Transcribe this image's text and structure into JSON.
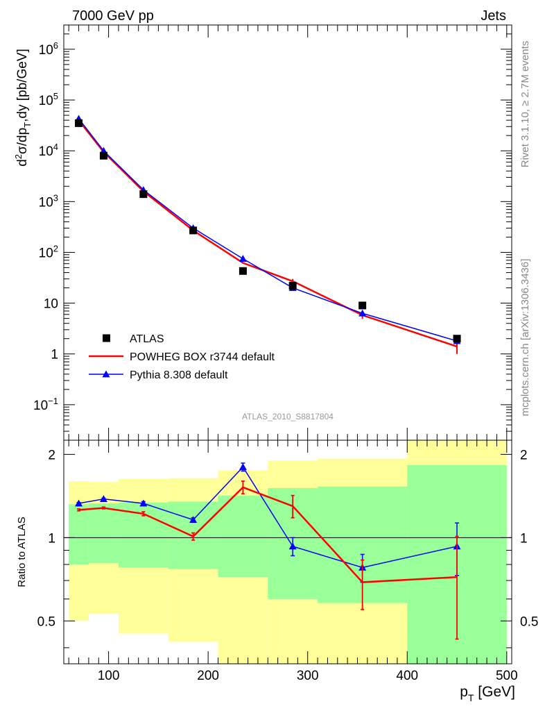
{
  "header": {
    "left": "7000 GeV pp",
    "right": "Jets"
  },
  "side_labels": {
    "rivet": "Rivet 3.1.10, ≥ 2.7M events",
    "mcplots": "mcplots.cern.ch [arXiv:1306.3436]"
  },
  "analysis_id": "ATLAS_2010_S8817804",
  "colors": {
    "data": "#000000",
    "powheg": "#ff0000",
    "pythia": "#0000ff",
    "band_outer": "#ffff99",
    "band_inner": "#99ff99"
  },
  "chart_data": [
    {
      "type": "scatter",
      "panel": "main",
      "ylabel": "d²σ/dp_T,dy [pb/GeV]",
      "yscale": "log",
      "ylim": [
        0.02,
        3000000
      ],
      "xlim": [
        55,
        505
      ],
      "yticks": [
        {
          "value": 0.1,
          "base": "10",
          "exp": "−1"
        },
        {
          "value": 1,
          "base": "1",
          "exp": ""
        },
        {
          "value": 10,
          "base": "10",
          "exp": ""
        },
        {
          "value": 100,
          "base": "10",
          "exp": "2"
        },
        {
          "value": 1000,
          "base": "10",
          "exp": "3"
        },
        {
          "value": 10000,
          "base": "10",
          "exp": "4"
        },
        {
          "value": 100000,
          "base": "10",
          "exp": "5"
        },
        {
          "value": 1000000,
          "base": "10",
          "exp": "6"
        }
      ],
      "legend_position": "bottom-left",
      "series": [
        {
          "name": "ATLAS",
          "marker": "square",
          "x": [
            70,
            95,
            135,
            185,
            235,
            285,
            355,
            450
          ],
          "y": [
            35000,
            8000,
            1400,
            270,
            43,
            22,
            9,
            2.0
          ]
        },
        {
          "name": "POWHEG BOX r3744 default",
          "marker": "line",
          "x": [
            70,
            95,
            135,
            185,
            235,
            285,
            355,
            450
          ],
          "y": [
            40000,
            9500,
            1600,
            270,
            62,
            27,
            5.8,
            1.4
          ],
          "err": [
            0,
            0,
            0,
            0,
            0,
            3,
            0.9,
            0.4
          ]
        },
        {
          "name": "Pythia 8.308 default",
          "marker": "triangle",
          "x": [
            70,
            95,
            135,
            185,
            235,
            285,
            355,
            450
          ],
          "y": [
            43000,
            10000,
            1700,
            300,
            75,
            20,
            6.3,
            1.8
          ]
        }
      ]
    },
    {
      "type": "line",
      "panel": "ratio",
      "xlabel": "p_T [GeV]",
      "ylabel": "Ratio to ATLAS",
      "xlim": [
        55,
        505
      ],
      "ylim": [
        0.35,
        2.25
      ],
      "xticks": [
        100,
        200,
        300,
        400,
        500
      ],
      "yticks": [
        0.5,
        1,
        2
      ],
      "bins": [
        [
          60,
          80
        ],
        [
          80,
          110
        ],
        [
          110,
          160
        ],
        [
          160,
          210
        ],
        [
          210,
          260
        ],
        [
          260,
          310
        ],
        [
          310,
          400
        ],
        [
          400,
          500
        ]
      ],
      "band_outer": {
        "lo": [
          0.5,
          0.53,
          0.45,
          0.42,
          0.35,
          0.35,
          0.35,
          0.35
        ],
        "hi": [
          1.6,
          1.59,
          1.63,
          1.64,
          1.75,
          1.9,
          1.93,
          2.25
        ]
      },
      "band_inner": {
        "lo": [
          0.8,
          0.81,
          0.78,
          0.77,
          0.72,
          0.6,
          0.58,
          0.35
        ],
        "hi": [
          1.32,
          1.33,
          1.34,
          1.35,
          1.42,
          1.51,
          1.53,
          1.83
        ]
      },
      "reference": 1,
      "series": [
        {
          "name": "POWHEG BOX r3744 default",
          "x": [
            70,
            95,
            135,
            185,
            235,
            285,
            355,
            450
          ],
          "y": [
            1.26,
            1.28,
            1.22,
            1.01,
            1.52,
            1.3,
            0.69,
            0.72
          ],
          "err": [
            0.01,
            0.01,
            0.02,
            0.03,
            0.08,
            0.12,
            0.14,
            0.29
          ]
        },
        {
          "name": "Pythia 8.308 default",
          "x": [
            70,
            95,
            135,
            185,
            235,
            285,
            355,
            450
          ],
          "y": [
            1.33,
            1.38,
            1.33,
            1.16,
            1.8,
            0.93,
            0.78,
            0.93
          ],
          "err": [
            0.01,
            0.01,
            0.02,
            0.02,
            0.06,
            0.07,
            0.09,
            0.2
          ]
        }
      ]
    }
  ]
}
